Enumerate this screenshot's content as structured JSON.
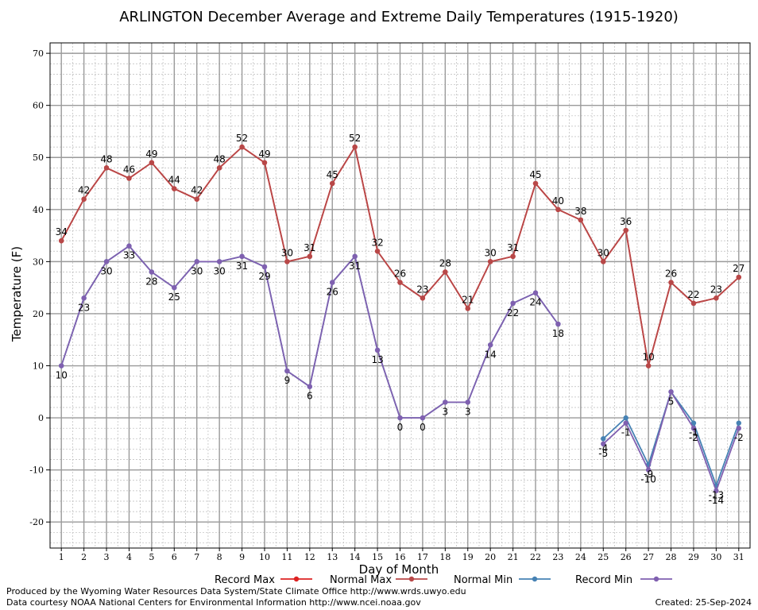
{
  "chart_data": {
    "type": "line",
    "title": "ARLINGTON December Average and Extreme Daily Temperatures (1915-1920)",
    "xlabel": "Day of Month",
    "ylabel": "Temperature (F)",
    "x": [
      1,
      2,
      3,
      4,
      5,
      6,
      7,
      8,
      9,
      10,
      11,
      12,
      13,
      14,
      15,
      16,
      17,
      18,
      19,
      20,
      21,
      22,
      23,
      24,
      25,
      26,
      27,
      28,
      29,
      30,
      31
    ],
    "xlim": [
      0.5,
      31.5
    ],
    "ylim": [
      -25,
      72
    ],
    "yticks": [
      70,
      60,
      50,
      40,
      30,
      20,
      10,
      0,
      -10,
      -20
    ],
    "grid": true,
    "legend_position": "bottom",
    "series": [
      {
        "name": "Record Max",
        "color": "#dd2222",
        "values": [
          34,
          42,
          48,
          46,
          49,
          44,
          42,
          48,
          52,
          49,
          30,
          31,
          45,
          52,
          32,
          26,
          23,
          28,
          21,
          30,
          31,
          45,
          40,
          38,
          30,
          36,
          10,
          26,
          22,
          23,
          27
        ]
      },
      {
        "name": "Normal Max",
        "color": "#b84848",
        "values": [
          34,
          42,
          48,
          46,
          49,
          44,
          42,
          48,
          52,
          49,
          30,
          31,
          45,
          52,
          32,
          26,
          23,
          28,
          21,
          30,
          31,
          45,
          40,
          38,
          30,
          36,
          10,
          26,
          22,
          23,
          27
        ],
        "labels": [
          "34",
          "42",
          "48",
          "46",
          "49",
          "44",
          "42",
          "48",
          "52",
          "49",
          "30",
          "31",
          "45",
          "52",
          "32",
          "26",
          "23",
          "28",
          "21",
          "30",
          "31",
          "45",
          "40",
          "38",
          "30",
          "36",
          "10",
          "26",
          "22",
          "23",
          "27"
        ]
      },
      {
        "name": "Normal Min",
        "color": "#4682b4",
        "values": [
          10,
          23,
          30,
          33,
          28,
          25,
          30,
          30,
          31,
          29,
          9,
          6,
          26,
          31,
          13,
          0,
          0,
          3,
          3,
          14,
          22,
          24,
          18,
          null,
          -4,
          0,
          -9,
          5,
          -1,
          -13,
          -1
        ],
        "labels": [
          "",
          "",
          "",
          "",
          "",
          "",
          "",
          "",
          "",
          "",
          "",
          "",
          "",
          "",
          "",
          "",
          "",
          "",
          "",
          "",
          "",
          "",
          "",
          "",
          "-4",
          "",
          "-9",
          "",
          "-1",
          "-13",
          ""
        ]
      },
      {
        "name": "Record Min",
        "color": "#8060b0",
        "values": [
          10,
          23,
          30,
          33,
          28,
          25,
          30,
          30,
          31,
          29,
          9,
          6,
          26,
          31,
          13,
          0,
          0,
          3,
          3,
          14,
          22,
          24,
          18,
          null,
          -5,
          -1,
          -10,
          5,
          -2,
          -14,
          -2
        ],
        "labels": [
          "10",
          "23",
          "30",
          "33",
          "28",
          "25",
          "30",
          "30",
          "31",
          "29",
          "9",
          "6",
          "26",
          "31",
          "13",
          "0",
          "0",
          "3",
          "3",
          "14",
          "22",
          "24",
          "18",
          "",
          "-5",
          "-1",
          "-10",
          "5",
          "-2",
          "-14",
          "-2"
        ]
      }
    ]
  },
  "footer": {
    "produced_by": "Produced by the Wyoming Water Resources Data System/State Climate Office http://www.wrds.uwyo.edu",
    "courtesy": "Data courtesy NOAA National Centers for Environmental Information http://www.ncei.noaa.gov",
    "created": "Created:  25-Sep-2024"
  }
}
